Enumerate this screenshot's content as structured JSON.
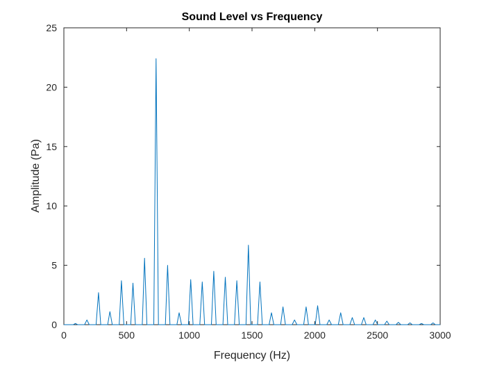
{
  "chart_data": {
    "type": "line",
    "title": "Sound Level vs Frequency",
    "xlabel": "Frequency (Hz)",
    "ylabel": "Amplitude (Pa)",
    "xlim": [
      0,
      3000
    ],
    "ylim": [
      0,
      25
    ],
    "xticks": [
      0,
      500,
      1000,
      1500,
      2000,
      2500,
      3000
    ],
    "yticks": [
      0,
      5,
      10,
      15,
      20,
      25
    ],
    "grid": false,
    "series": [
      {
        "name": "Amplitude",
        "color": "#0072BD",
        "x": [
          0,
          75,
          92,
          110,
          165,
          184,
          202,
          257,
          276,
          294,
          349,
          367,
          386,
          441,
          459,
          478,
          533,
          551,
          570,
          625,
          643,
          662,
          717,
          735,
          754,
          809,
          827,
          846,
          901,
          919,
          938,
          993,
          1011,
          1030,
          1084,
          1103,
          1122,
          1176,
          1195,
          1214,
          1268,
          1287,
          1306,
          1360,
          1379,
          1398,
          1452,
          1471,
          1490,
          1544,
          1563,
          1582,
          1636,
          1655,
          1674,
          1728,
          1747,
          1766,
          1820,
          1839,
          1858,
          1912,
          1931,
          1950,
          2004,
          2023,
          2042,
          2096,
          2115,
          2134,
          2188,
          2207,
          2226,
          2280,
          2299,
          2318,
          2372,
          2391,
          2410,
          2464,
          2483,
          2502,
          2556,
          2575,
          2594,
          2648,
          2667,
          2686,
          2740,
          2759,
          2778,
          2832,
          2851,
          2870,
          2924,
          2943,
          2962,
          3000
        ],
        "y": [
          0,
          0,
          0.1,
          0,
          0,
          0.4,
          0,
          0,
          2.7,
          0,
          0,
          1.1,
          0,
          0,
          3.7,
          0,
          0,
          3.5,
          0,
          0,
          5.6,
          0,
          0,
          22.4,
          0,
          0,
          5.0,
          0,
          0,
          1.0,
          0,
          0,
          3.8,
          0,
          0,
          3.6,
          0,
          0,
          4.5,
          0,
          0,
          4.0,
          0,
          0,
          3.7,
          0,
          0,
          6.7,
          0,
          0,
          3.6,
          0,
          0,
          1.0,
          0,
          0,
          1.5,
          0,
          0,
          0.4,
          0,
          0,
          1.5,
          0,
          0,
          1.6,
          0,
          0,
          0.4,
          0,
          0,
          1.0,
          0,
          0,
          0.6,
          0,
          0,
          0.6,
          0,
          0,
          0.4,
          0,
          0,
          0.3,
          0,
          0,
          0.2,
          0,
          0,
          0.15,
          0,
          0,
          0.1,
          0,
          0,
          0.15,
          0,
          0
        ]
      }
    ]
  }
}
